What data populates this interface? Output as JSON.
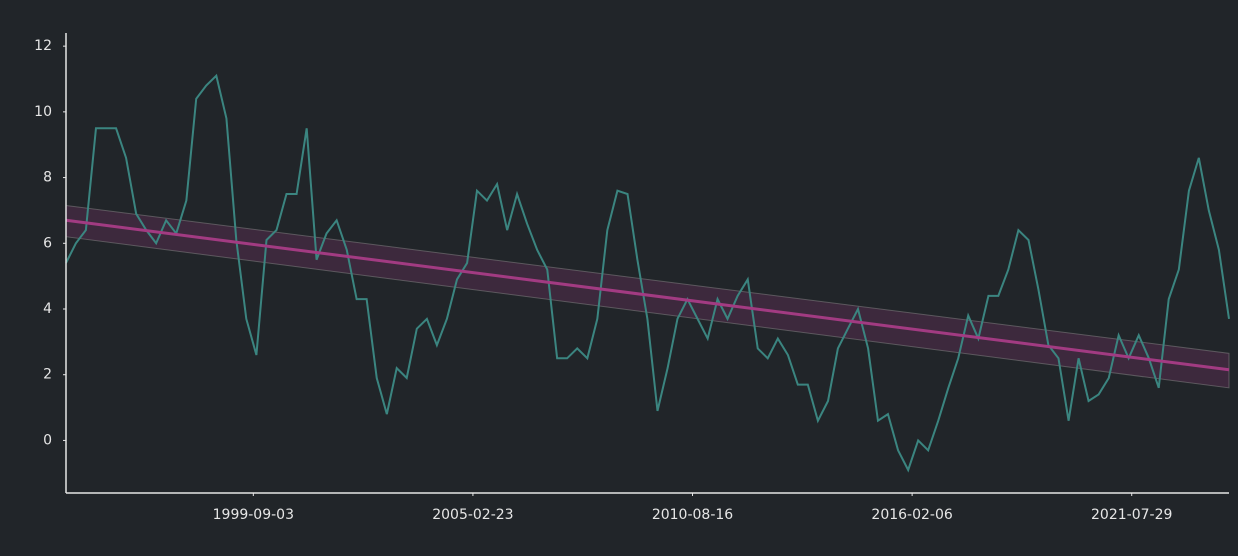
{
  "chart_data": {
    "type": "line",
    "x": [
      "1995-01-01",
      "1995-04-01",
      "1995-07-01",
      "1995-10-01",
      "1996-01-01",
      "1996-04-01",
      "1996-07-01",
      "1996-10-01",
      "1997-01-01",
      "1997-04-01",
      "1997-07-01",
      "1997-10-01",
      "1998-01-01",
      "1998-04-01",
      "1998-07-01",
      "1998-10-01",
      "1999-01-01",
      "1999-04-01",
      "1999-07-01",
      "1999-10-01",
      "2000-01-01",
      "2000-04-01",
      "2000-07-01",
      "2000-10-01",
      "2001-01-01",
      "2001-04-01",
      "2001-07-01",
      "2001-10-01",
      "2002-01-01",
      "2002-04-01",
      "2002-07-01",
      "2002-10-01",
      "2003-01-01",
      "2003-04-01",
      "2003-07-01",
      "2003-10-01",
      "2004-01-01",
      "2004-04-01",
      "2004-07-01",
      "2004-10-01",
      "2005-01-01",
      "2005-04-01",
      "2005-07-01",
      "2005-10-01",
      "2006-01-01",
      "2006-04-01",
      "2006-07-01",
      "2006-10-01",
      "2007-01-01",
      "2007-04-01",
      "2007-07-01",
      "2007-10-01",
      "2008-01-01",
      "2008-04-01",
      "2008-07-01",
      "2008-10-01",
      "2009-01-01",
      "2009-04-01",
      "2009-07-01",
      "2009-10-01",
      "2010-01-01",
      "2010-04-01",
      "2010-07-01",
      "2010-10-01",
      "2011-01-01",
      "2011-04-01",
      "2011-07-01",
      "2011-10-01",
      "2012-01-01",
      "2012-04-01",
      "2012-07-01",
      "2012-10-01",
      "2013-01-01",
      "2013-04-01",
      "2013-07-01",
      "2013-10-01",
      "2014-01-01",
      "2014-04-01",
      "2014-07-01",
      "2014-10-01",
      "2015-01-01",
      "2015-04-01",
      "2015-07-01",
      "2015-10-01",
      "2016-01-01",
      "2016-04-01",
      "2016-07-01",
      "2016-10-01",
      "2017-01-01",
      "2017-04-01",
      "2017-07-01",
      "2017-10-01",
      "2018-01-01",
      "2018-04-01",
      "2018-07-01",
      "2018-10-01",
      "2019-01-01",
      "2019-04-01",
      "2019-07-01",
      "2019-10-01",
      "2020-01-01",
      "2020-04-01",
      "2020-07-01",
      "2020-10-01",
      "2021-01-01",
      "2021-04-01",
      "2021-07-01",
      "2021-10-01",
      "2022-01-01",
      "2022-04-01",
      "2022-07-01",
      "2022-10-01",
      "2023-01-01",
      "2023-04-01",
      "2023-07-01",
      "2023-10-01",
      "2024-01-01"
    ],
    "values": [
      5.4,
      6.0,
      6.4,
      9.5,
      9.5,
      9.5,
      8.6,
      6.9,
      6.4,
      6.0,
      6.7,
      6.3,
      7.3,
      10.4,
      10.8,
      11.1,
      9.8,
      6.1,
      3.7,
      2.6,
      6.1,
      6.4,
      7.5,
      7.5,
      9.5,
      5.5,
      6.3,
      6.7,
      5.8,
      4.3,
      4.3,
      1.9,
      0.8,
      2.2,
      1.9,
      3.4,
      3.7,
      2.9,
      3.7,
      4.9,
      5.4,
      7.6,
      7.3,
      7.8,
      6.4,
      7.5,
      6.6,
      5.8,
      5.2,
      2.5,
      2.5,
      2.8,
      2.5,
      3.7,
      6.4,
      7.6,
      7.5,
      5.5,
      3.7,
      0.9,
      2.2,
      3.7,
      4.3,
      3.7,
      3.1,
      4.3,
      3.7,
      4.4,
      4.9,
      2.8,
      2.5,
      3.1,
      2.6,
      1.7,
      1.7,
      0.6,
      1.2,
      2.8,
      3.4,
      4.0,
      2.8,
      0.6,
      0.8,
      -0.3,
      -0.9,
      0.0,
      -0.3,
      0.6,
      1.6,
      2.5,
      3.8,
      3.1,
      4.4,
      4.4,
      5.2,
      6.4,
      6.1,
      4.6,
      2.9,
      2.5,
      0.6,
      2.5,
      1.2,
      1.4,
      1.9,
      3.2,
      2.5,
      3.2,
      2.5,
      1.6,
      4.3,
      5.2,
      7.6,
      8.6,
      7.0,
      5.8,
      3.7
    ],
    "color": "#3b8580",
    "trend": {
      "x": [
        "1995-01-01",
        "2024-01-01"
      ],
      "values": [
        6.7,
        2.15
      ],
      "lower": [
        6.2,
        1.6
      ],
      "upper": [
        7.15,
        2.65
      ],
      "color": "#a23b82"
    },
    "xlim": [
      "1995-01-01",
      "2024-01-01"
    ],
    "xticks": [
      "1999-09-03",
      "2005-02-23",
      "2010-08-16",
      "2016-02-06",
      "2021-07-29"
    ],
    "ylim": [
      -1.6,
      12.4
    ],
    "yticks": [
      0,
      2,
      4,
      6,
      8,
      10,
      12
    ],
    "grid": false
  }
}
